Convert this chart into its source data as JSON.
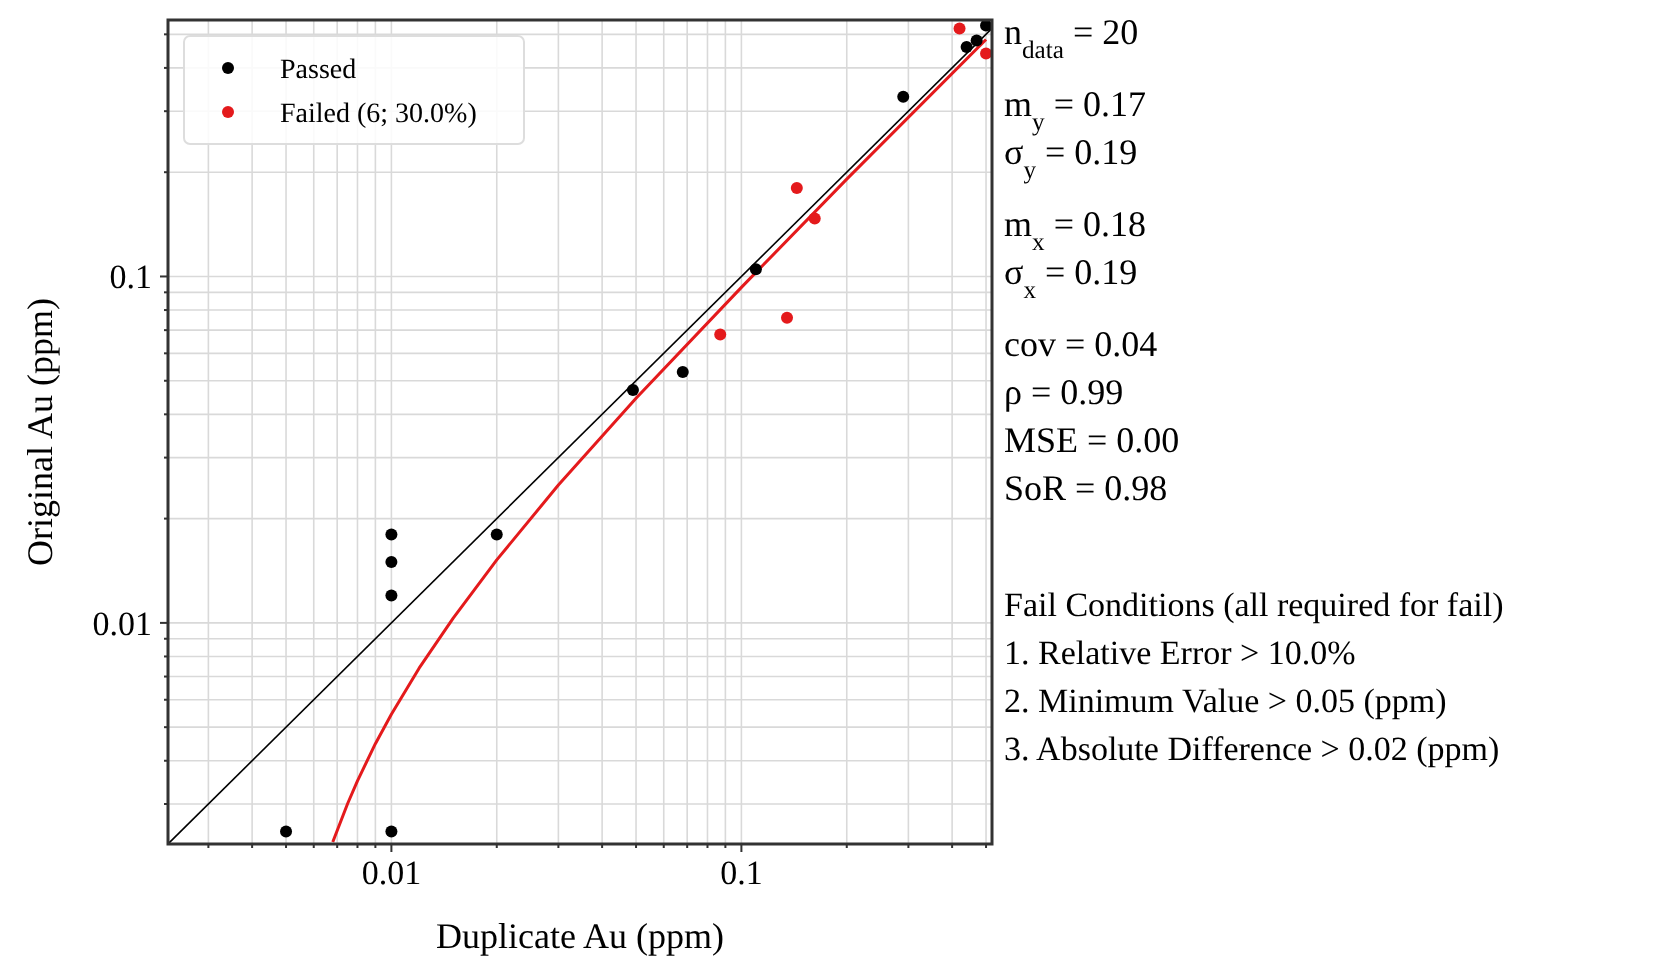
{
  "chart_data": {
    "type": "scatter",
    "xlabel": "Duplicate Au (ppm)",
    "ylabel": "Original Au (ppm)",
    "log": "xy",
    "grid": true,
    "legend": "top left",
    "marker": "circle",
    "xlim": [
      0.0023,
      0.52
    ],
    "ylim": [
      0.0023,
      0.55
    ],
    "xticks": [
      {
        "value": 0.003,
        "label": null
      },
      {
        "value": 0.004,
        "label": null
      },
      {
        "value": 0.005,
        "label": null
      },
      {
        "value": 0.006,
        "label": null
      },
      {
        "value": 0.007,
        "label": null
      },
      {
        "value": 0.008,
        "label": null
      },
      {
        "value": 0.009,
        "label": null
      },
      0.01,
      {
        "value": 0.02,
        "label": null
      },
      {
        "value": 0.03,
        "label": null
      },
      {
        "value": 0.04,
        "label": null
      },
      {
        "value": 0.05,
        "label": null
      },
      {
        "value": 0.06,
        "label": null
      },
      {
        "value": 0.07,
        "label": null
      },
      {
        "value": 0.08,
        "label": null
      },
      {
        "value": 0.09,
        "label": null
      },
      0.1,
      {
        "value": 0.2,
        "label": null
      },
      {
        "value": 0.3,
        "label": null
      },
      {
        "value": 0.4,
        "label": null
      },
      {
        "value": 0.5,
        "label": null
      }
    ],
    "yticks": [
      {
        "value": 0.003,
        "label": null
      },
      {
        "value": 0.004,
        "label": null
      },
      {
        "value": 0.005,
        "label": null
      },
      {
        "value": 0.006,
        "label": null
      },
      {
        "value": 0.007,
        "label": null
      },
      {
        "value": 0.008,
        "label": null
      },
      {
        "value": 0.009,
        "label": null
      },
      0.01,
      {
        "value": 0.02,
        "label": null
      },
      {
        "value": 0.03,
        "label": null
      },
      {
        "value": 0.04,
        "label": null
      },
      {
        "value": 0.05,
        "label": null
      },
      {
        "value": 0.06,
        "label": null
      },
      {
        "value": 0.07,
        "label": null
      },
      {
        "value": 0.08,
        "label": null
      },
      {
        "value": 0.09,
        "label": null
      },
      0.1,
      {
        "value": 0.2,
        "label": null
      },
      {
        "value": 0.3,
        "label": null
      },
      {
        "value": 0.4,
        "label": null
      },
      {
        "value": 0.5,
        "label": null
      }
    ],
    "series": [
      {
        "type": "line",
        "marker": "none",
        "color": "#000000",
        "x": [
          0.0023,
          0.52
        ],
        "values": [
          0.0023,
          0.52
        ]
      },
      {
        "type": "line",
        "marker": "none",
        "color": "#e41a1c",
        "x": [
          0.0068,
          0.0075,
          0.008,
          0.009,
          0.01,
          0.012,
          0.015,
          0.02,
          0.03,
          0.05,
          0.1,
          0.2,
          0.5
        ],
        "values": [
          0.00233,
          0.00301,
          0.0035,
          0.00448,
          0.00545,
          0.0074,
          0.0103,
          0.0152,
          0.025,
          0.0445,
          0.093,
          0.191,
          0.483
        ]
      },
      {
        "name": "Passed",
        "color": "#000000",
        "x": [
          0.005,
          0.01,
          0.01,
          0.01,
          0.01,
          0.02,
          0.049,
          0.068,
          0.11,
          0.29,
          0.44,
          0.47,
          0.5
        ],
        "values": [
          0.0025,
          0.0025,
          0.012,
          0.015,
          0.018,
          0.018,
          0.047,
          0.053,
          0.105,
          0.33,
          0.46,
          0.48,
          0.53
        ]
      },
      {
        "name": "Failed (6; 30.0%)",
        "color": "#e41a1c",
        "x": [
          0.087,
          0.135,
          0.144,
          0.162,
          0.42,
          0.5
        ],
        "values": [
          0.068,
          0.076,
          0.18,
          0.147,
          0.52,
          0.44
        ]
      }
    ],
    "annotations": [
      "n$_{data}$ = 20",
      "m$_{y}$ = 0.17",
      "σ$_{y}$ = 0.19",
      "m$_{x}$ = 0.18",
      "σ$_{x}$ = 0.19",
      "cov = 0.04",
      "ρ = 0.99",
      "MSE = 0.00",
      "SoR = 0.98",
      "Fail Conditions (all required for fail)",
      "1. Relative Error > 10.0%",
      "2. Minimum Value > 0.05 (ppm)",
      "3. Absolute Difference > 0.02 (ppm)"
    ]
  }
}
